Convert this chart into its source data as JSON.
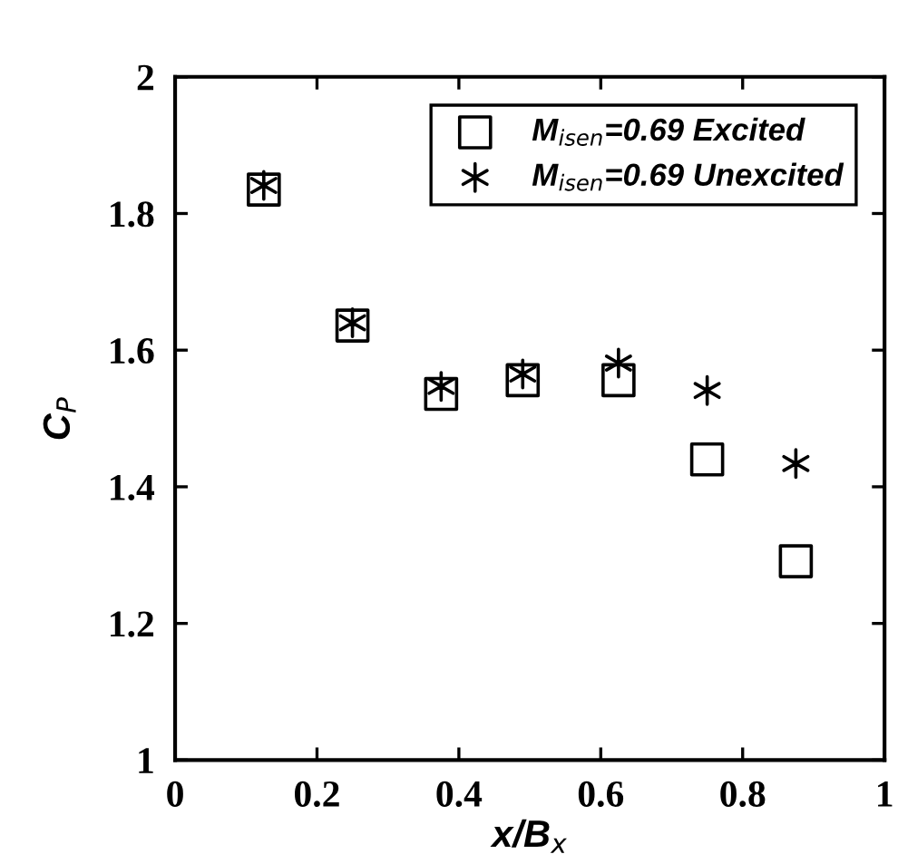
{
  "chart_data": {
    "type": "scatter",
    "xlabel": "x/B$_{x}$",
    "ylabel": "C$_{P}$",
    "xlim": [
      0,
      1
    ],
    "xticks": [
      0,
      0.2,
      0.4,
      0.6,
      0.8,
      1
    ],
    "ylim": [
      1,
      2
    ],
    "yticks": [
      1,
      1.2,
      1.4,
      1.6,
      1.8,
      2
    ],
    "grid": false,
    "legend": "top right",
    "series": [
      {
        "name": "M$_{isen}$=0.69 Excited",
        "color": "#000000",
        "marker": "square",
        "x": [
          0.125,
          0.25,
          0.375,
          0.49,
          0.625,
          0.75,
          0.875
        ],
        "values": [
          1.835,
          1.636,
          1.536,
          1.556,
          1.556,
          1.44,
          1.291
        ]
      },
      {
        "name": "M$_{isen}$=0.69 Unexcited",
        "color": "#000000",
        "marker": "cross",
        "x": [
          0.125,
          0.25,
          0.375,
          0.49,
          0.625,
          0.75,
          0.875
        ],
        "values": [
          1.841,
          1.64,
          1.547,
          1.565,
          1.581,
          1.541,
          1.434
        ]
      }
    ]
  }
}
